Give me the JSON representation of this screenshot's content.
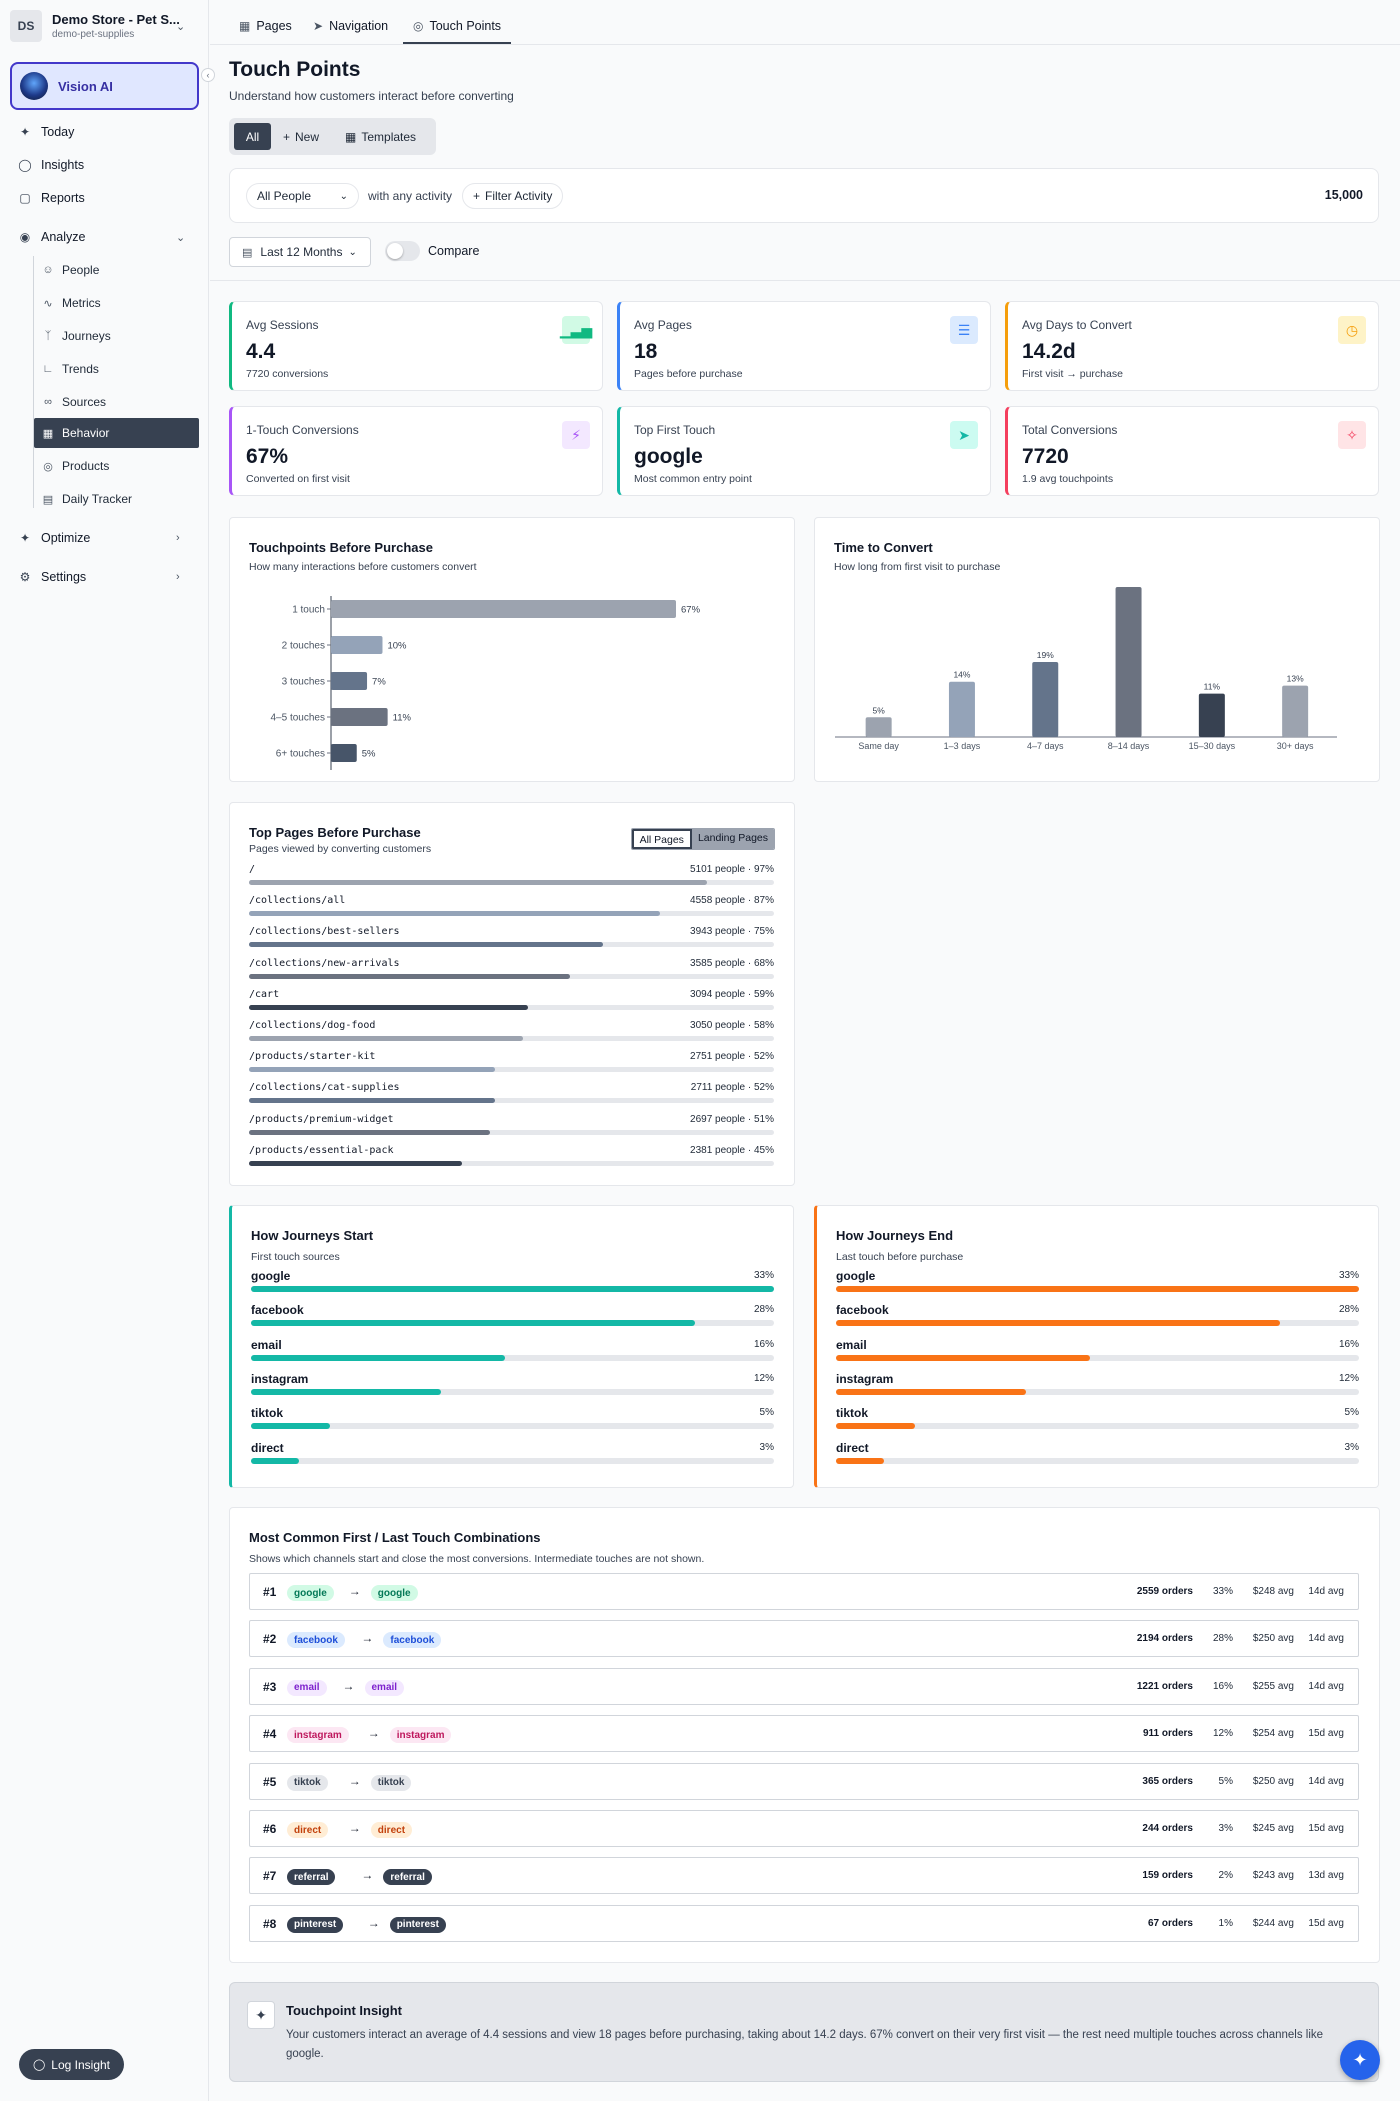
{
  "store": {
    "initials": "DS",
    "name": "Demo Store - Pet S...",
    "handle": "demo-pet-supplies"
  },
  "sidebar": {
    "vision_label": "Vision AI",
    "today": "Today",
    "insights": "Insights",
    "reports": "Reports",
    "analyze": "Analyze",
    "sub": [
      "People",
      "Metrics",
      "Journeys",
      "Trends",
      "Sources",
      "Behavior",
      "Products",
      "Daily Tracker"
    ],
    "optimize": "Optimize",
    "settings": "Settings",
    "log_insight": "Log Insight"
  },
  "tabs": [
    "Pages",
    "Navigation",
    "Touch Points"
  ],
  "page": {
    "title": "Touch Points",
    "subtitle": "Understand how customers interact before converting"
  },
  "segments": [
    "All",
    "New",
    "Templates"
  ],
  "filter": {
    "people": "All People",
    "activity_text": "with any activity",
    "filter_activity": "Filter Activity",
    "total": "15,000"
  },
  "date_range": "Last 12 Months",
  "compare": "Compare",
  "kpis": [
    {
      "label": "Avg Sessions",
      "value": "4.4",
      "sub": "7720 conversions",
      "color": "#10b981",
      "icon": "bar-chart-icon"
    },
    {
      "label": "Avg Pages",
      "value": "18",
      "sub": "Pages before purchase",
      "color": "#3b82f6",
      "icon": "document-icon"
    },
    {
      "label": "Avg Days to Convert",
      "value": "14.2d",
      "sub": "First visit → purchase",
      "color": "#f59e0b",
      "icon": "clock-icon"
    },
    {
      "label": "1-Touch Conversions",
      "value": "67%",
      "sub": "Converted on first visit",
      "color": "#a855f7",
      "icon": "lightning-icon"
    },
    {
      "label": "Top First Touch",
      "value": "google",
      "sub": "Most common entry point",
      "color": "#14b8a6",
      "icon": "send-icon"
    },
    {
      "label": "Total Conversions",
      "value": "7720",
      "sub": "1.9 avg touchpoints",
      "color": "#f43f5e",
      "icon": "pointer-icon"
    }
  ],
  "touchpoints_card": {
    "title": "Touchpoints Before Purchase",
    "subtitle": "How many interactions before customers convert"
  },
  "time_card": {
    "title": "Time to Convert",
    "subtitle": "How long from first visit to purchase"
  },
  "chart_data": [
    {
      "type": "bar",
      "orientation": "horizontal",
      "title": "Touchpoints Before Purchase",
      "categories": [
        "1 touch",
        "2 touches",
        "3 touches",
        "4–5 touches",
        "6+ touches"
      ],
      "values": [
        67,
        10,
        7,
        11,
        5
      ],
      "labels": [
        "67%",
        "10%",
        "7%",
        "11%",
        "5%"
      ],
      "colors": [
        "#9ca3af",
        "#94a3b8",
        "#64748b",
        "#6b7280",
        "#475569"
      ],
      "xlim": [
        0,
        67
      ]
    },
    {
      "type": "bar",
      "title": "Time to Convert",
      "categories": [
        "Same day",
        "1–3 days",
        "4–7 days",
        "8–14 days",
        "15–30 days",
        "30+ days"
      ],
      "values": [
        5,
        14,
        19,
        38,
        11,
        13
      ],
      "labels": [
        "5%",
        "14%",
        "19%",
        "",
        "11%",
        "13%"
      ],
      "colors": [
        "#9ca3af",
        "#94a3b8",
        "#64748b",
        "#6b7280",
        "#374151",
        "#9ca3af"
      ],
      "ylim": [
        0,
        38
      ]
    }
  ],
  "top_pages": {
    "title": "Top Pages Before Purchase",
    "subtitle": "Pages viewed by converting customers",
    "toggle": [
      "All Pages",
      "Landing Pages"
    ],
    "rows": [
      {
        "path": "/",
        "stat": "5101 people · 97%",
        "pct": 97,
        "color": "#9ca3af"
      },
      {
        "path": "/collections/all",
        "stat": "4558 people · 87%",
        "pct": 87,
        "color": "#94a3b8"
      },
      {
        "path": "/collections/best-sellers",
        "stat": "3943 people · 75%",
        "pct": 75,
        "color": "#64748b"
      },
      {
        "path": "/collections/new-arrivals",
        "stat": "3585 people · 68%",
        "pct": 68,
        "color": "#6b7280"
      },
      {
        "path": "/cart",
        "stat": "3094 people · 59%",
        "pct": 59,
        "color": "#374151"
      },
      {
        "path": "/collections/dog-food",
        "stat": "3050 people · 58%",
        "pct": 58,
        "color": "#9ca3af"
      },
      {
        "path": "/products/starter-kit",
        "stat": "2751 people · 52%",
        "pct": 52,
        "color": "#94a3b8"
      },
      {
        "path": "/collections/cat-supplies",
        "stat": "2711 people · 52%",
        "pct": 52,
        "color": "#64748b"
      },
      {
        "path": "/products/premium-widget",
        "stat": "2697 people · 51%",
        "pct": 51,
        "color": "#6b7280"
      },
      {
        "path": "/products/essential-pack",
        "stat": "2381 people · 45%",
        "pct": 45,
        "color": "#374151"
      }
    ]
  },
  "journeys_start": {
    "title": "How Journeys Start",
    "subtitle": "First touch sources",
    "color": "#14b8a6",
    "rows": [
      {
        "name": "google",
        "label": "33%",
        "pct": 33
      },
      {
        "name": "facebook",
        "label": "28%",
        "pct": 28
      },
      {
        "name": "email",
        "label": "16%",
        "pct": 16
      },
      {
        "name": "instagram",
        "label": "12%",
        "pct": 12
      },
      {
        "name": "tiktok",
        "label": "5%",
        "pct": 5
      },
      {
        "name": "direct",
        "label": "3%",
        "pct": 3
      }
    ]
  },
  "journeys_end": {
    "title": "How Journeys End",
    "subtitle": "Last touch before purchase",
    "color": "#f97316",
    "rows": [
      {
        "name": "google",
        "label": "33%",
        "pct": 33
      },
      {
        "name": "facebook",
        "label": "28%",
        "pct": 28
      },
      {
        "name": "email",
        "label": "16%",
        "pct": 16
      },
      {
        "name": "instagram",
        "label": "12%",
        "pct": 12
      },
      {
        "name": "tiktok",
        "label": "5%",
        "pct": 5
      },
      {
        "name": "direct",
        "label": "3%",
        "pct": 3
      }
    ]
  },
  "combos": {
    "title": "Most Common First / Last Touch Combinations",
    "subtitle": "Shows which channels start and close the most conversions. Intermediate touches are not shown.",
    "rows": [
      {
        "rank": "#1",
        "first": "google",
        "last": "google",
        "orders": "2559 orders",
        "pct": "33%",
        "avg": "$248 avg",
        "days": "14d avg",
        "bg": "#d1fae5",
        "fg": "#047857"
      },
      {
        "rank": "#2",
        "first": "facebook",
        "last": "facebook",
        "orders": "2194 orders",
        "pct": "28%",
        "avg": "$250 avg",
        "days": "14d avg",
        "bg": "#dbeafe",
        "fg": "#1d4ed8"
      },
      {
        "rank": "#3",
        "first": "email",
        "last": "email",
        "orders": "1221 orders",
        "pct": "16%",
        "avg": "$255 avg",
        "days": "14d avg",
        "bg": "#f3e8ff",
        "fg": "#7e22ce"
      },
      {
        "rank": "#4",
        "first": "instagram",
        "last": "instagram",
        "orders": "911 orders",
        "pct": "12%",
        "avg": "$254 avg",
        "days": "15d avg",
        "bg": "#fce7f3",
        "fg": "#be185d"
      },
      {
        "rank": "#5",
        "first": "tiktok",
        "last": "tiktok",
        "orders": "365 orders",
        "pct": "5%",
        "avg": "$250 avg",
        "days": "14d avg",
        "bg": "#e5e7eb",
        "fg": "#374151"
      },
      {
        "rank": "#6",
        "first": "direct",
        "last": "direct",
        "orders": "244 orders",
        "pct": "3%",
        "avg": "$245 avg",
        "days": "15d avg",
        "bg": "#ffedd5",
        "fg": "#c2410c"
      },
      {
        "rank": "#7",
        "first": "referral",
        "last": "referral",
        "orders": "159 orders",
        "pct": "2%",
        "avg": "$243 avg",
        "days": "13d avg",
        "bg": "#374151",
        "fg": "#ffffff"
      },
      {
        "rank": "#8",
        "first": "pinterest",
        "last": "pinterest",
        "orders": "67 orders",
        "pct": "1%",
        "avg": "$244 avg",
        "days": "15d avg",
        "bg": "#374151",
        "fg": "#ffffff"
      }
    ]
  },
  "insight": {
    "title": "Touchpoint Insight",
    "text": "Your customers interact an average of 4.4 sessions and view 18 pages before purchasing, taking about 14.2 days. 67% convert on their very first visit — the rest need multiple touches across channels like google."
  }
}
